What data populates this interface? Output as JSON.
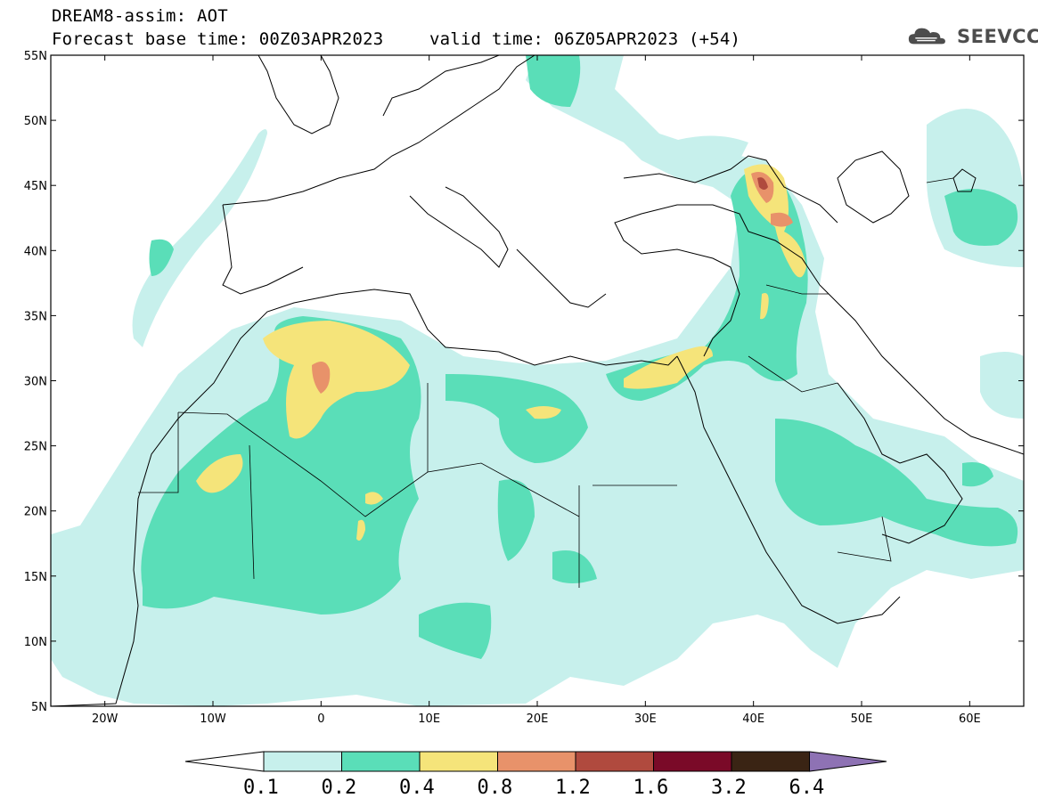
{
  "header": {
    "line1": "DREAM8-assim: AOT",
    "base": "Forecast base time: 00Z03APR2023",
    "valid": "valid time: 06Z05APR2023 (+54)",
    "logo_text": "SEEVCCC",
    "logo_icon": "cloud-icon"
  },
  "map": {
    "extent": {
      "lon": [
        -25,
        65
      ],
      "lat": [
        5,
        55
      ]
    },
    "x_ticks": [
      {
        "lon": -20,
        "label": "20W"
      },
      {
        "lon": -10,
        "label": "10W"
      },
      {
        "lon": 0,
        "label": "0"
      },
      {
        "lon": 10,
        "label": "10E"
      },
      {
        "lon": 20,
        "label": "20E"
      },
      {
        "lon": 30,
        "label": "30E"
      },
      {
        "lon": 40,
        "label": "40E"
      },
      {
        "lon": 50,
        "label": "50E"
      },
      {
        "lon": 60,
        "label": "60E"
      }
    ],
    "y_ticks": [
      {
        "lat": 55,
        "label": "55N"
      },
      {
        "lat": 50,
        "label": "50N"
      },
      {
        "lat": 45,
        "label": "45N"
      },
      {
        "lat": 40,
        "label": "40N"
      },
      {
        "lat": 35,
        "label": "35N"
      },
      {
        "lat": 30,
        "label": "30N"
      },
      {
        "lat": 25,
        "label": "25N"
      },
      {
        "lat": 20,
        "label": "20N"
      },
      {
        "lat": 15,
        "label": "15N"
      },
      {
        "lat": 10,
        "label": "10N"
      },
      {
        "lat": 5,
        "label": "5N"
      }
    ]
  },
  "colorbar": {
    "colors": [
      "#ffffff",
      "#c7f0ec",
      "#5adeb8",
      "#f5e47a",
      "#e8926a",
      "#b04a3e",
      "#7a0a28",
      "#3a2414",
      "#8e72b4"
    ],
    "labels": [
      "0.1",
      "0.2",
      "0.4",
      "0.8",
      "1.2",
      "1.6",
      "3.2",
      "6.4"
    ]
  }
}
